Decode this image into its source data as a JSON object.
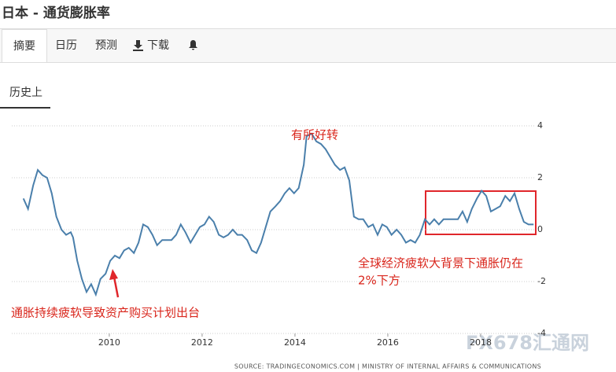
{
  "header": {
    "title": "日本 - 通货膨胀率"
  },
  "tabs": [
    "摘要",
    "日历",
    "预测",
    "下载"
  ],
  "subtab": "历史上",
  "chart_data": {
    "type": "line",
    "x": [
      2008.15,
      2008.25,
      2008.36,
      2008.46,
      2008.56,
      2008.66,
      2008.76,
      2008.86,
      2008.97,
      2009.07,
      2009.17,
      2009.22,
      2009.31,
      2009.41,
      2009.51,
      2009.61,
      2009.71,
      2009.81,
      2009.92,
      2010.02,
      2010.12,
      2010.22,
      2010.32,
      2010.42,
      2010.53,
      2010.63,
      2010.73,
      2010.83,
      2010.93,
      2011.03,
      2011.14,
      2011.24,
      2011.34,
      2011.44,
      2011.54,
      2011.64,
      2011.75,
      2011.85,
      2011.95,
      2012.05,
      2012.15,
      2012.25,
      2012.36,
      2012.46,
      2012.56,
      2012.66,
      2012.76,
      2012.86,
      2012.97,
      2013.07,
      2013.17,
      2013.27,
      2013.37,
      2013.47,
      2013.58,
      2013.68,
      2013.78,
      2013.88,
      2013.98,
      2014.08,
      2014.19,
      2014.25,
      2014.36,
      2014.46,
      2014.56,
      2014.66,
      2014.76,
      2014.86,
      2014.97,
      2015.07,
      2015.17,
      2015.27,
      2015.37,
      2015.47,
      2015.58,
      2015.68,
      2015.78,
      2015.88,
      2015.98,
      2016.08,
      2016.19,
      2016.29,
      2016.39,
      2016.49,
      2016.59,
      2016.69,
      2016.8,
      2016.9,
      2017.0,
      2017.1,
      2017.2,
      2017.31,
      2017.41,
      2017.51,
      2017.61,
      2017.71,
      2017.81,
      2017.92,
      2018.02,
      2018.12,
      2018.22,
      2018.32,
      2018.42,
      2018.53,
      2018.63,
      2018.73,
      2018.83,
      2018.93,
      2019.03,
      2019.14
    ],
    "series": [
      {
        "color": "#4a7fab",
        "values": [
          1.2,
          0.8,
          1.7,
          2.3,
          2.1,
          2.0,
          1.4,
          0.5,
          0,
          -0.2,
          -0.1,
          -0.3,
          -1.2,
          -1.9,
          -2.4,
          -2.1,
          -2.5,
          -1.9,
          -1.7,
          -1.2,
          -1.0,
          -1.1,
          -0.8,
          -0.7,
          -0.9,
          -0.5,
          0.2,
          0.1,
          -0.2,
          -0.6,
          -0.4,
          -0.4,
          -0.4,
          -0.2,
          0.2,
          -0.1,
          -0.5,
          -0.2,
          0.1,
          0.2,
          0.5,
          0.3,
          -0.2,
          -0.3,
          -0.2,
          0,
          -0.2,
          -0.2,
          -0.4,
          -0.8,
          -0.9,
          -0.5,
          0.1,
          0.7,
          0.9,
          1.1,
          1.4,
          1.6,
          1.4,
          1.6,
          2.5,
          3.6,
          3.7,
          3.4,
          3.3,
          3.1,
          2.8,
          2.5,
          2.3,
          2.4,
          1.9,
          0.5,
          0.4,
          0.4,
          0.1,
          0.2,
          -0.2,
          0.2,
          0.1,
          -0.2,
          0,
          -0.2,
          -0.5,
          -0.4,
          -0.5,
          -0.2,
          0.4,
          0.2,
          0.4,
          0.2,
          0.4,
          0.4,
          0.4,
          0.4,
          0.7,
          0.3,
          0.8,
          1.2,
          1.5,
          1.3,
          0.7,
          0.8,
          0.9,
          1.3,
          1.1,
          1.4,
          0.8,
          0.3,
          0.2,
          0.2
        ]
      }
    ],
    "xlim": [
      2007.9,
      2019.17
    ],
    "xticks": [
      2010,
      2012,
      2014,
      2016,
      2018
    ],
    "ylim": [
      -4,
      4
    ],
    "yticks": [
      4,
      2,
      0,
      -2,
      -4
    ],
    "grid": true,
    "annotations": [
      "有所好转",
      "全球经济疲软大背景下通胀仍在",
      "2%下方",
      "通胀持续疲软导致资产购买计划出台"
    ],
    "source": "SOURCE: TRADINGECONOMICS.COM | MINISTRY OF INTERNAL AFFAIRS & COMMUNICATIONS",
    "watermark": "FX678汇通网"
  }
}
